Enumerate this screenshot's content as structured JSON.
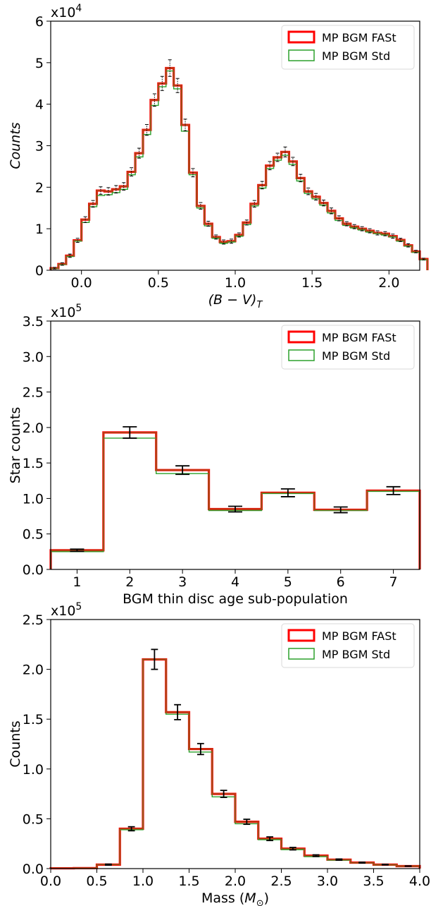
{
  "chart_data": [
    {
      "type": "step-histogram",
      "title": "",
      "xlabel": "(B − V)",
      "xlabel_sub": "T",
      "ylabel": "Counts",
      "ylabel_italic": true,
      "multiplier": {
        "base": "x10",
        "exp": "4"
      },
      "xlim": [
        -0.2,
        2.2
      ],
      "ylim": [
        0,
        6
      ],
      "xticks": [
        0.0,
        0.5,
        1.0,
        1.5,
        2.0
      ],
      "xtick_labels": [
        "0.0",
        "0.5",
        "1.0",
        "1.5",
        "2.0"
      ],
      "yticks": [
        0,
        1,
        2,
        3,
        4,
        5,
        6
      ],
      "ytick_labels": [
        "0",
        "1",
        "2",
        "3",
        "4",
        "5",
        "6"
      ],
      "legend_position": "top-right",
      "bin_width": 0.05,
      "bin_edges_start": -0.2,
      "errorbar_style": "dotted",
      "series": [
        {
          "name": "MP BGM FASt",
          "color": "#ff0000",
          "values": [
            0.05,
            0.15,
            0.35,
            0.72,
            1.22,
            1.6,
            1.92,
            1.9,
            1.95,
            2.02,
            2.37,
            2.82,
            3.38,
            4.1,
            4.5,
            4.87,
            4.45,
            3.5,
            2.35,
            1.55,
            1.12,
            0.8,
            0.68,
            0.7,
            0.85,
            1.15,
            1.6,
            2.05,
            2.52,
            2.72,
            2.85,
            2.62,
            2.22,
            1.9,
            1.77,
            1.62,
            1.43,
            1.25,
            1.12,
            1.05,
            1.0,
            0.95,
            0.9,
            0.88,
            0.82,
            0.73,
            0.6,
            0.45,
            0.27
          ]
        },
        {
          "name": "MP BGM Std",
          "color": "#2ca02c",
          "values": [
            0.04,
            0.14,
            0.33,
            0.7,
            1.15,
            1.53,
            1.8,
            1.82,
            1.87,
            1.95,
            2.3,
            2.73,
            3.27,
            3.97,
            4.42,
            4.8,
            4.37,
            3.35,
            2.3,
            1.5,
            1.07,
            0.77,
            0.65,
            0.68,
            0.82,
            1.1,
            1.55,
            1.98,
            2.45,
            2.65,
            2.77,
            2.55,
            2.15,
            1.85,
            1.72,
            1.57,
            1.38,
            1.2,
            1.08,
            1.02,
            0.97,
            0.92,
            0.88,
            0.85,
            0.8,
            0.7,
            0.58,
            0.43,
            0.25
          ]
        }
      ],
      "errors": [
        0.02,
        0.03,
        0.04,
        0.05,
        0.07,
        0.08,
        0.09,
        0.09,
        0.09,
        0.09,
        0.1,
        0.12,
        0.13,
        0.15,
        0.17,
        0.2,
        0.17,
        0.14,
        0.1,
        0.08,
        0.06,
        0.05,
        0.05,
        0.05,
        0.05,
        0.06,
        0.08,
        0.09,
        0.1,
        0.1,
        0.12,
        0.1,
        0.09,
        0.08,
        0.08,
        0.07,
        0.07,
        0.06,
        0.05,
        0.05,
        0.05,
        0.05,
        0.05,
        0.05,
        0.05,
        0.04,
        0.04,
        0.03,
        0.02
      ]
    },
    {
      "type": "step-histogram",
      "title": "",
      "xlabel": "BGM thin disc age sub-population",
      "ylabel": "Star counts",
      "multiplier": {
        "base": "x10",
        "exp": "5"
      },
      "xlim": [
        0.5,
        7.5
      ],
      "ylim": [
        0,
        3.5
      ],
      "xticks": [
        1,
        2,
        3,
        4,
        5,
        6,
        7
      ],
      "xtick_labels": [
        "1",
        "2",
        "3",
        "4",
        "5",
        "6",
        "7"
      ],
      "yticks": [
        0,
        0.5,
        1.0,
        1.5,
        2.0,
        2.5,
        3.0,
        3.5
      ],
      "ytick_labels": [
        "0.0",
        "0.5",
        "1.0",
        "1.5",
        "2.0",
        "2.5",
        "3.0",
        "3.5"
      ],
      "legend_position": "top-right",
      "bin_width": 1,
      "bin_edges_start": 0.5,
      "errorbar_style": "solid",
      "series": [
        {
          "name": "MP BGM FASt",
          "color": "#ff0000",
          "values": [
            0.27,
            1.93,
            1.4,
            0.85,
            1.08,
            0.84,
            1.11
          ]
        },
        {
          "name": "MP BGM Std",
          "color": "#2ca02c",
          "values": [
            0.25,
            1.85,
            1.35,
            0.83,
            1.07,
            0.83,
            1.1
          ]
        }
      ],
      "errors": [
        0.015,
        0.08,
        0.06,
        0.04,
        0.055,
        0.04,
        0.055
      ]
    },
    {
      "type": "step-histogram",
      "title": "",
      "xlabel": "Mass (",
      "xlabel_symbol": "M",
      "xlabel_sub": "⊙",
      "xlabel_end": ")",
      "ylabel": "Counts",
      "multiplier": {
        "base": "x10",
        "exp": "5"
      },
      "xlim": [
        0.0,
        4.0
      ],
      "ylim": [
        0,
        2.5
      ],
      "xticks": [
        0.0,
        0.5,
        1.0,
        1.5,
        2.0,
        2.5,
        3.0,
        3.5,
        4.0
      ],
      "xtick_labels": [
        "0.0",
        "0.5",
        "1.0",
        "1.5",
        "2.0",
        "2.5",
        "3.0",
        "3.5",
        "4.0"
      ],
      "yticks": [
        0,
        0.5,
        1.0,
        1.5,
        2.0,
        2.5
      ],
      "ytick_labels": [
        "0.0",
        "0.5",
        "1.0",
        "1.5",
        "2.0",
        "2.5"
      ],
      "legend_position": "top-right",
      "bin_width": 0.25,
      "bin_edges_start": 0.0,
      "errorbar_style": "solid",
      "series": [
        {
          "name": "MP BGM FASt",
          "color": "#ff0000",
          "values": [
            0.003,
            0.005,
            0.04,
            0.4,
            2.1,
            1.57,
            1.2,
            0.75,
            0.47,
            0.3,
            0.2,
            0.13,
            0.09,
            0.06,
            0.04,
            0.025
          ]
        },
        {
          "name": "MP BGM Std",
          "color": "#2ca02c",
          "values": [
            0.003,
            0.005,
            0.04,
            0.39,
            2.1,
            1.55,
            1.17,
            0.72,
            0.45,
            0.29,
            0.19,
            0.12,
            0.085,
            0.058,
            0.038,
            0.024
          ]
        }
      ],
      "errors": [
        0,
        0,
        0.005,
        0.02,
        0.1,
        0.075,
        0.055,
        0.035,
        0.025,
        0.018,
        0.012,
        0.008,
        0.006,
        0.004,
        0.003,
        0.002
      ]
    }
  ]
}
